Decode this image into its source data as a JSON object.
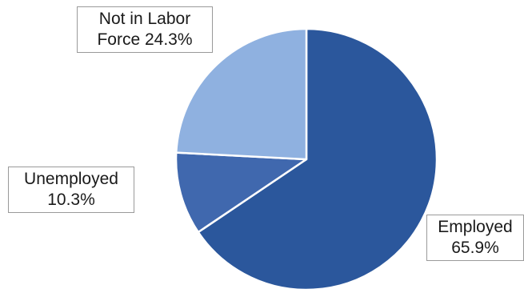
{
  "chart_data": {
    "type": "pie",
    "title": "",
    "slices": [
      {
        "label": "Employed",
        "value": 65.9,
        "value_text": "65.9%",
        "color": "#2b579c"
      },
      {
        "label": "Unemployed",
        "value": 10.3,
        "value_text": "10.3%",
        "color": "#4068ae"
      },
      {
        "label": "Not in Labor Force",
        "value": 24.3,
        "value_text": "24.3%",
        "color": "#8fb1e0"
      }
    ],
    "start": "12 o'clock",
    "direction": "clockwise",
    "legend": "none",
    "data_labels": "outside, boxed",
    "slice_border_color": "#ffffff"
  },
  "labels": {
    "not_in_labor_force": {
      "line1": "Not in Labor",
      "line2": "Force 24.3%"
    },
    "unemployed": {
      "line1": "Unemployed",
      "line2": "10.3%"
    },
    "employed": {
      "line1": "Employed",
      "line2": "65.9%"
    }
  }
}
